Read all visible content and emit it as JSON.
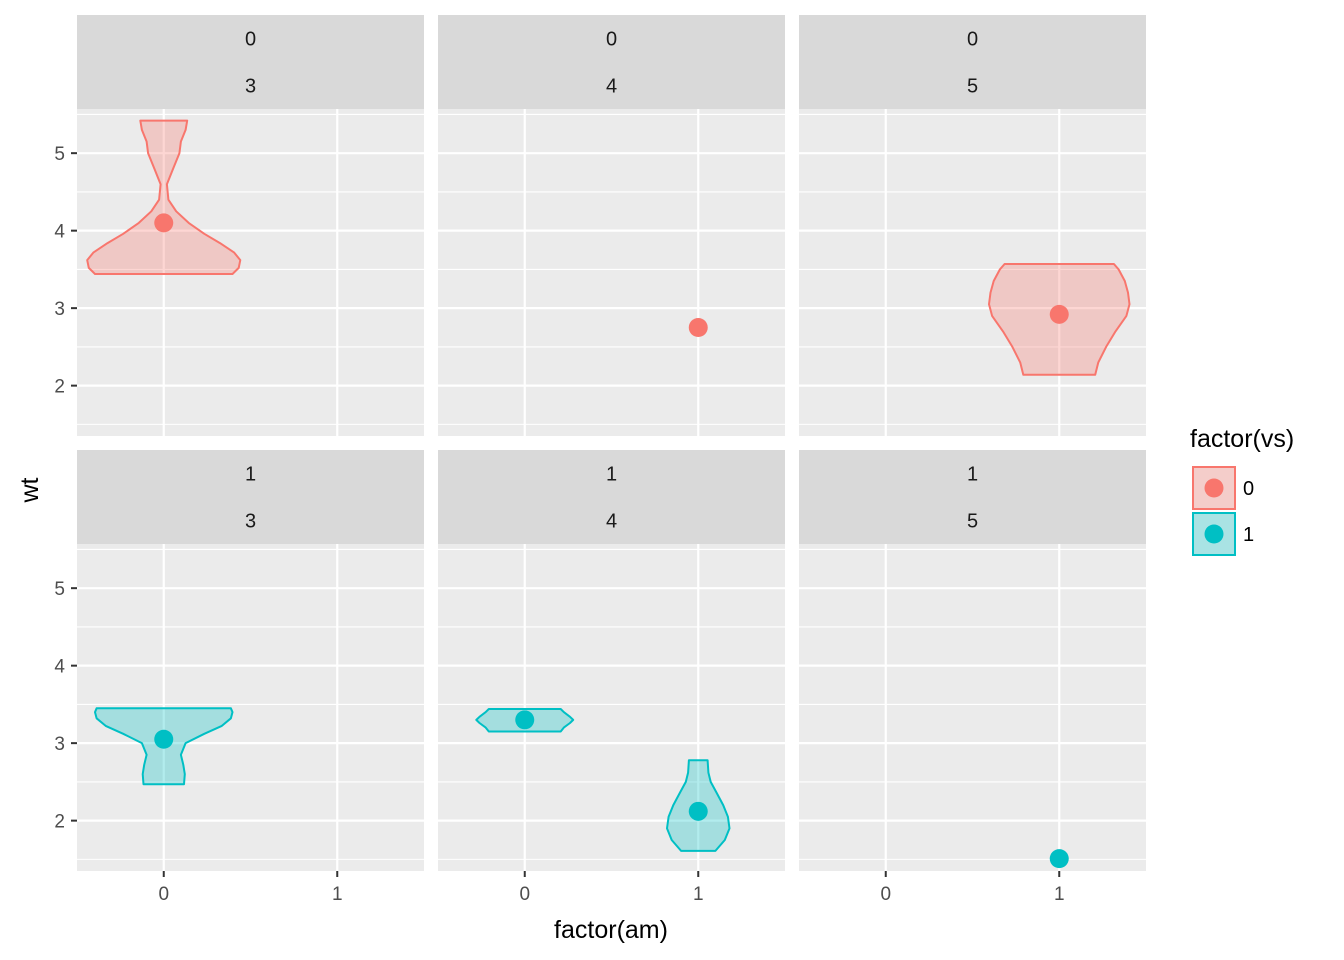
{
  "chart_data": {
    "type": "violin",
    "xlabel": "factor(am)",
    "ylabel": "wt",
    "x_categories": [
      "0",
      "1"
    ],
    "y_ticks": [
      2,
      3,
      4,
      5
    ],
    "ylim": [
      1.35,
      5.57
    ],
    "facet_rows": [
      "0",
      "1"
    ],
    "facet_cols": [
      "3",
      "4",
      "5"
    ],
    "legend": {
      "title": "factor(vs)",
      "position": "right",
      "entries": [
        {
          "label": "0",
          "color": "#F8766D"
        },
        {
          "label": "1",
          "color": "#00BFC4"
        }
      ]
    },
    "colors": {
      "0": "#F8766D",
      "1": "#00BFC4"
    },
    "panels": [
      {
        "row": "0",
        "col": "3",
        "violins": [
          {
            "am": "0",
            "vs": "0",
            "mean": 4.1,
            "profile": [
              [
                3.44,
                0.88
              ],
              [
                3.52,
                0.96
              ],
              [
                3.62,
                0.98
              ],
              [
                3.72,
                0.9
              ],
              [
                3.84,
                0.72
              ],
              [
                3.96,
                0.52
              ],
              [
                4.1,
                0.32
              ],
              [
                4.25,
                0.16
              ],
              [
                4.4,
                0.06
              ],
              [
                4.6,
                0.04
              ],
              [
                4.8,
                0.12
              ],
              [
                5.0,
                0.2
              ],
              [
                5.15,
                0.22
              ],
              [
                5.3,
                0.28
              ],
              [
                5.42,
                0.3
              ]
            ]
          }
        ]
      },
      {
        "row": "0",
        "col": "4",
        "violins": [
          {
            "am": "1",
            "vs": "0",
            "mean": 2.75,
            "profile": []
          }
        ]
      },
      {
        "row": "0",
        "col": "5",
        "violins": [
          {
            "am": "1",
            "vs": "0",
            "mean": 2.92,
            "profile": [
              [
                2.14,
                0.46
              ],
              [
                2.3,
                0.5
              ],
              [
                2.5,
                0.6
              ],
              [
                2.7,
                0.72
              ],
              [
                2.9,
                0.86
              ],
              [
                3.05,
                0.9
              ],
              [
                3.2,
                0.88
              ],
              [
                3.35,
                0.84
              ],
              [
                3.5,
                0.76
              ],
              [
                3.57,
                0.7
              ]
            ]
          }
        ]
      },
      {
        "row": "1",
        "col": "3",
        "violins": [
          {
            "am": "0",
            "vs": "1",
            "mean": 3.05,
            "profile": [
              [
                2.47,
                0.26
              ],
              [
                2.6,
                0.27
              ],
              [
                2.72,
                0.25
              ],
              [
                2.85,
                0.22
              ],
              [
                3.0,
                0.28
              ],
              [
                3.12,
                0.52
              ],
              [
                3.22,
                0.74
              ],
              [
                3.32,
                0.86
              ],
              [
                3.4,
                0.88
              ],
              [
                3.45,
                0.86
              ]
            ]
          }
        ]
      },
      {
        "row": "1",
        "col": "4",
        "violins": [
          {
            "am": "0",
            "vs": "1",
            "mean": 3.3,
            "profile": [
              [
                3.15,
                0.46
              ],
              [
                3.2,
                0.5
              ],
              [
                3.26,
                0.58
              ],
              [
                3.3,
                0.62
              ],
              [
                3.34,
                0.58
              ],
              [
                3.4,
                0.5
              ],
              [
                3.44,
                0.46
              ]
            ]
          },
          {
            "am": "1",
            "vs": "1",
            "mean": 2.12,
            "profile": [
              [
                1.61,
                0.22
              ],
              [
                1.75,
                0.34
              ],
              [
                1.9,
                0.4
              ],
              [
                2.05,
                0.38
              ],
              [
                2.2,
                0.32
              ],
              [
                2.35,
                0.24
              ],
              [
                2.5,
                0.16
              ],
              [
                2.62,
                0.13
              ],
              [
                2.78,
                0.12
              ]
            ]
          }
        ]
      },
      {
        "row": "1",
        "col": "5",
        "violins": [
          {
            "am": "1",
            "vs": "1",
            "mean": 1.51,
            "profile": []
          }
        ]
      }
    ]
  }
}
